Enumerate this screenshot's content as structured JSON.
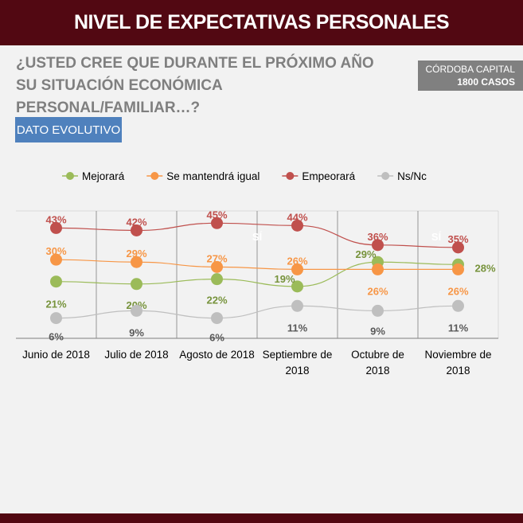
{
  "header": {
    "title": "NIVEL DE EXPECTATIVAS PERSONALES"
  },
  "question": "¿USTED CREE QUE DURANTE EL PRÓXIMO AÑO SU SITUACIÓN ECONÓMICA PERSONAL/FAMILIAR…?",
  "badge": {
    "location": "CÓRDOBA CAPITAL",
    "cases": "1800 CASOS"
  },
  "section_label": "DATO EVOLUTIVO",
  "chart_data": {
    "type": "line",
    "categories": [
      [
        "Junio de 2018"
      ],
      [
        "Julio de 2018"
      ],
      [
        "Agosto de 2018"
      ],
      [
        "Septiembre de",
        "2018"
      ],
      [
        "Octubre  de",
        "2018"
      ],
      [
        "Noviembre  de",
        "2018"
      ]
    ],
    "legend_position": "top",
    "grid": "vertical",
    "ylim": [
      -1,
      50
    ],
    "series": [
      {
        "name": "Mejorará",
        "color": "#9bbb59",
        "label_color": "#77933c",
        "values": [
          21,
          20,
          22,
          19,
          29,
          28
        ],
        "labels": [
          "21%",
          "20%",
          "22%",
          "19%",
          "29%",
          "28%"
        ]
      },
      {
        "name": "Se mantendrá igual",
        "color": "#f79646",
        "label_color": "#f79646",
        "values": [
          30,
          29,
          27,
          26,
          26,
          26
        ],
        "labels": [
          "30%",
          "29%",
          "27%",
          "26%",
          "26%",
          "26%"
        ]
      },
      {
        "name": "Empeorará",
        "color": "#c0504d",
        "label_color": "#c0504d",
        "values": [
          43,
          42,
          45,
          44,
          36,
          35
        ],
        "labels": [
          "43%",
          "42%",
          "45%",
          "44%",
          "36%",
          "35%"
        ]
      },
      {
        "name": "Ns/Nc",
        "color": "#bfbfbf",
        "label_color": "#595959",
        "values": [
          6,
          9,
          6,
          11,
          9,
          11
        ],
        "labels": [
          "6%",
          "9%",
          "6%",
          "11%",
          "9%",
          "11%"
        ]
      }
    ],
    "annotations": [
      "SÍ",
      "SÍ"
    ]
  }
}
